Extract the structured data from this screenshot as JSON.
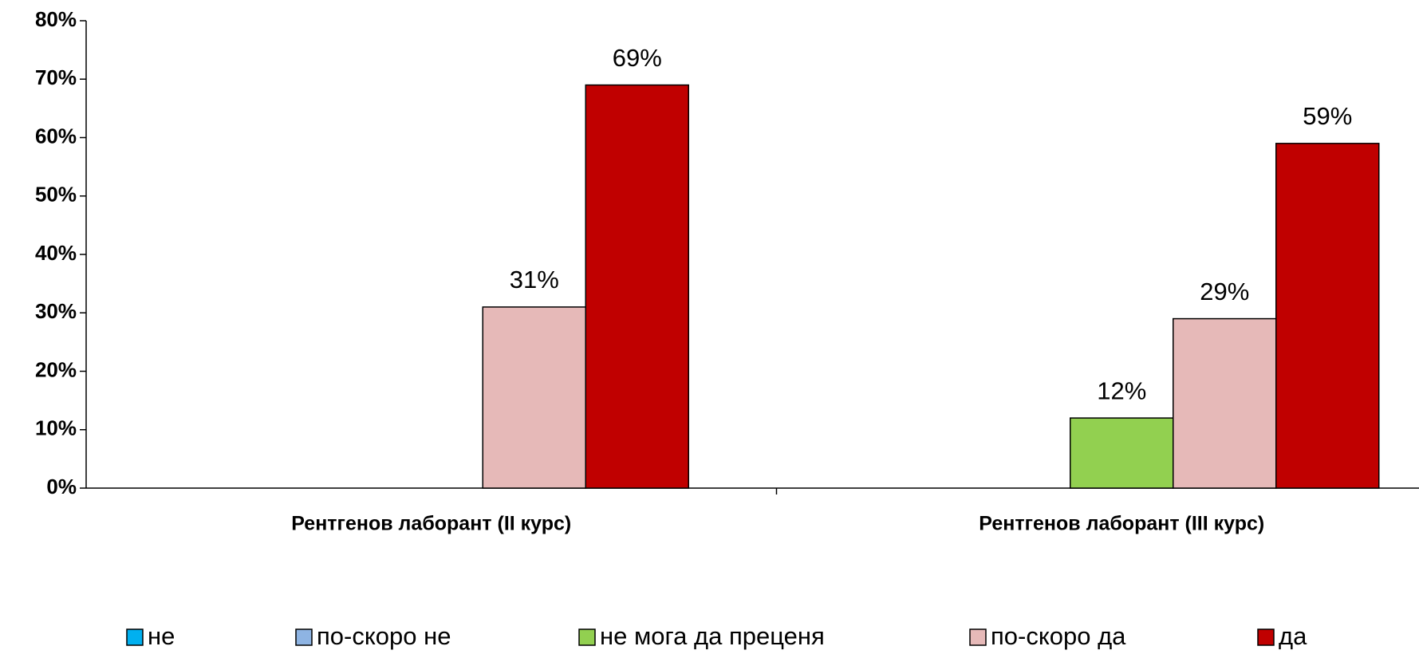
{
  "chart_data": {
    "type": "bar",
    "categories": [
      "Рентгенов лаборант (II курс)",
      "Рентгенов лаборант (III курс)"
    ],
    "series": [
      {
        "name": "не",
        "color": "#00b0f0",
        "values": [
          0,
          0
        ],
        "value_labels": [
          null,
          null
        ]
      },
      {
        "name": "по-скоро не",
        "color": "#8eb4e3",
        "values": [
          0,
          0
        ],
        "value_labels": [
          null,
          null
        ]
      },
      {
        "name": "не мога да преценя",
        "color": "#92d050",
        "values": [
          0,
          12
        ],
        "value_labels": [
          null,
          "12%"
        ]
      },
      {
        "name": "по-скоро да",
        "color": "#e6b9b8",
        "values": [
          31,
          29
        ],
        "value_labels": [
          "31%",
          "29%"
        ]
      },
      {
        "name": "да",
        "color": "#c00000",
        "values": [
          69,
          59
        ],
        "value_labels": [
          "69%",
          "59%"
        ]
      }
    ],
    "ylim": [
      0,
      80
    ],
    "yticks": [
      {
        "value": 0,
        "label": "0%"
      },
      {
        "value": 10,
        "label": "10%"
      },
      {
        "value": 20,
        "label": "20%"
      },
      {
        "value": 30,
        "label": "30%"
      },
      {
        "value": 40,
        "label": "40%"
      },
      {
        "value": 50,
        "label": "50%"
      },
      {
        "value": 60,
        "label": "60%"
      },
      {
        "value": 70,
        "label": "70%"
      },
      {
        "value": 80,
        "label": "80%"
      }
    ],
    "legend": "bottom"
  }
}
